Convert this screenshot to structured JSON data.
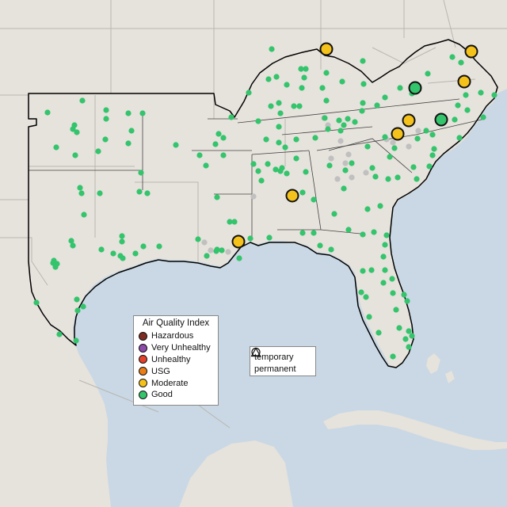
{
  "map": {
    "colors": {
      "water": "#c9d8e4",
      "land": "#e6e2dc",
      "border": "#b9b5b0",
      "region_outline": "#000000",
      "unknown_station": "#c0c0c0"
    }
  },
  "aqi_legend": {
    "title": "Air Quality Index",
    "items": [
      {
        "label": "Hazardous",
        "color": "#7e2b23"
      },
      {
        "label": "Very Unhealthy",
        "color": "#8d4aa8"
      },
      {
        "label": "Unhealthy",
        "color": "#e2412a"
      },
      {
        "label": "USG",
        "color": "#e97e16"
      },
      {
        "label": "Moderate",
        "color": "#f4c21b"
      },
      {
        "label": "Good",
        "color": "#33c46c"
      }
    ]
  },
  "shape_legend": {
    "items": [
      {
        "label": "temporary",
        "icon": "circle-icon"
      },
      {
        "label": "permanent",
        "icon": "triangle-icon"
      }
    ]
  }
}
